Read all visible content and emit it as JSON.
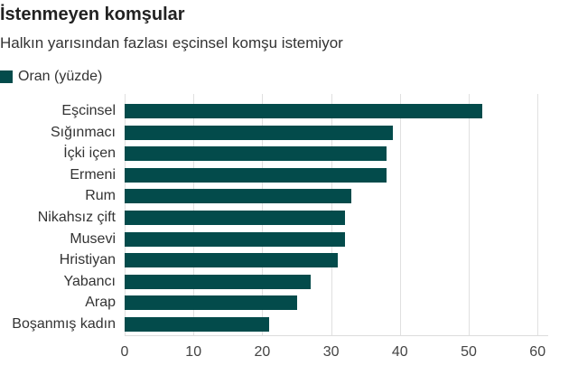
{
  "header": {
    "title": "İstenmeyen komşular",
    "subtitle": "Halkın yarısından fazlası eşcinsel komşu istemiyor"
  },
  "legend": {
    "label": "Oran (yüzde)",
    "color": "#034b4b"
  },
  "chart_data": {
    "type": "bar",
    "orientation": "horizontal",
    "title": "İstenmeyen komşular",
    "subtitle": "Halkın yarısından fazlası eşcinsel komşu istemiyor",
    "xlabel": "",
    "ylabel": "",
    "categories": [
      "Eşcinsel",
      "Sığınmacı",
      "İçki içen",
      "Ermeni",
      "Rum",
      "Nikahsız çift",
      "Musevi",
      "Hristiyan",
      "Yabancı",
      "Arap",
      "Boşanmış kadın"
    ],
    "series": [
      {
        "name": "Oran (yüzde)",
        "color": "#034b4b",
        "values": [
          52,
          39,
          38,
          38,
          33,
          32,
          32,
          31,
          27,
          25,
          21
        ]
      }
    ],
    "xlim": [
      0,
      61
    ],
    "xticks": [
      0,
      10,
      20,
      30,
      40,
      50,
      60
    ],
    "grid": true,
    "legend_position": "top-left"
  }
}
